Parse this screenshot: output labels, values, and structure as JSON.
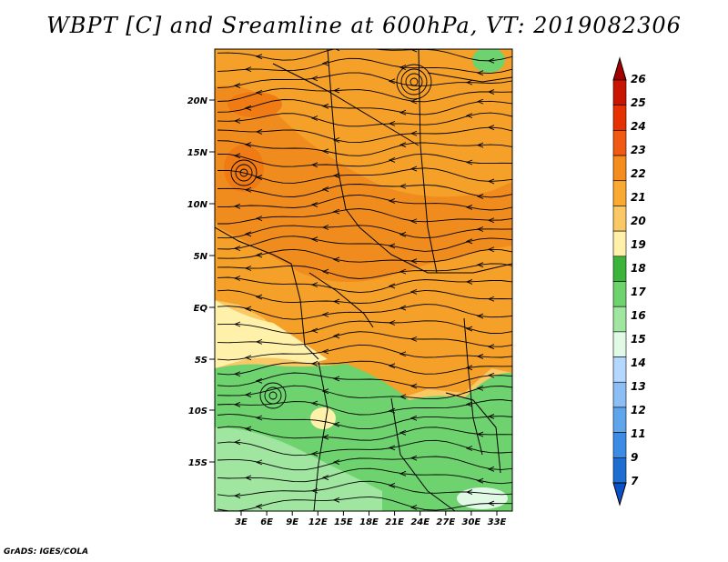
{
  "title": "WBPT [C] and Sreamline at 600hPa, VT: 2019082306",
  "credit": "GrADS: IGES/COLA",
  "map": {
    "lat_labels": [
      "20N",
      "15N",
      "10N",
      "5N",
      "EQ",
      "5S",
      "10S",
      "15S"
    ],
    "lon_labels": [
      "3E",
      "6E",
      "9E",
      "12E",
      "15E",
      "18E",
      "21E",
      "24E",
      "27E",
      "30E",
      "33E"
    ]
  },
  "colorbar": {
    "labels": [
      "26",
      "25",
      "24",
      "23",
      "22",
      "21",
      "20",
      "19",
      "18",
      "17",
      "16",
      "15",
      "14",
      "13",
      "12",
      "11",
      "9",
      "7"
    ],
    "colors": [
      "#a50000",
      "#c81400",
      "#e63200",
      "#f05a14",
      "#f58c1e",
      "#faaa32",
      "#fac864",
      "#fff0aa",
      "#3cb43c",
      "#6ed26e",
      "#a0e6a0",
      "#e1fae6",
      "#b4d7ff",
      "#8cbef5",
      "#5fa5eb",
      "#3c8ce6",
      "#1e6ed2",
      "#0a50c8"
    ]
  },
  "legend_colors": {
    "orange_dark": "#f08c1e",
    "orange": "#faaa32",
    "yellow": "#fac864",
    "pale_yellow": "#fff0aa",
    "green": "#6ed26e",
    "light_green": "#a0e6a0"
  }
}
